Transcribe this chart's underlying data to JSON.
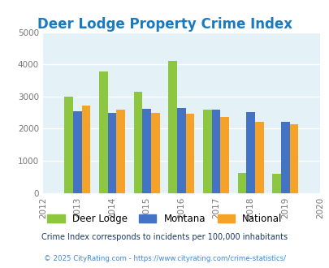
{
  "title": "Deer Lodge Property Crime Index",
  "years": [
    2012,
    2013,
    2014,
    2015,
    2016,
    2017,
    2018,
    2019,
    2020
  ],
  "data_years": [
    2013,
    2014,
    2015,
    2016,
    2017,
    2018,
    2019
  ],
  "deer_lodge": [
    3000,
    3780,
    3150,
    4100,
    2600,
    620,
    600
  ],
  "montana": [
    2530,
    2480,
    2620,
    2650,
    2600,
    2520,
    2200
  ],
  "national": [
    2720,
    2600,
    2480,
    2460,
    2360,
    2200,
    2130
  ],
  "colors": {
    "deer_lodge": "#8dc63f",
    "montana": "#4472c4",
    "national": "#f4a228"
  },
  "ylim": [
    0,
    5000
  ],
  "yticks": [
    0,
    1000,
    2000,
    3000,
    4000,
    5000
  ],
  "background_color": "#e4f2f7",
  "title_color": "#1a7abf",
  "title_fontsize": 12,
  "footnote1": "Crime Index corresponds to incidents per 100,000 inhabitants",
  "footnote2": "© 2025 CityRating.com - https://www.cityrating.com/crime-statistics/",
  "footnote1_color": "#1a3a6b",
  "footnote2_color": "#4488cc",
  "legend_labels": [
    "Deer Lodge",
    "Montana",
    "National"
  ],
  "bar_width": 0.25
}
